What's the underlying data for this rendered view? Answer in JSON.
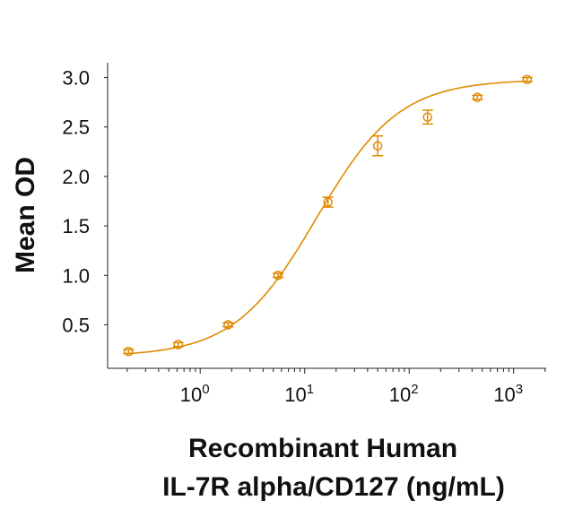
{
  "chart_data": {
    "type": "scatter",
    "title": "",
    "xlabel_lines": [
      "Recombinant Human",
      "IL-7R alpha/CD127 (ng/mL)"
    ],
    "ylabel": "Mean OD",
    "xscale": "log",
    "xlim": [
      0.13,
      2050
    ],
    "ylim": [
      0.06,
      3.15
    ],
    "grid": false,
    "color": "#E08A00",
    "y_ticks": [
      0.5,
      1.0,
      1.5,
      2.0,
      2.5,
      3.0
    ],
    "y_tick_labels": [
      "0.5",
      "1.0",
      "1.5",
      "2.0",
      "2.5",
      "3.0"
    ],
    "x_ticks": [
      1,
      10,
      100,
      1000
    ],
    "x_tick_labels": [
      {
        "base": "10",
        "exp": "0"
      },
      {
        "base": "10",
        "exp": "1"
      },
      {
        "base": "10",
        "exp": "2"
      },
      {
        "base": "10",
        "exp": "3"
      }
    ],
    "series": [
      {
        "x": [
          0.206,
          0.617,
          1.85,
          5.56,
          16.7,
          50,
          150,
          450,
          1350
        ],
        "y": [
          0.23,
          0.3,
          0.5,
          1.0,
          1.74,
          2.31,
          2.6,
          2.8,
          2.98
        ],
        "error": [
          0.02,
          0.02,
          0.02,
          0.02,
          0.05,
          0.1,
          0.07,
          0.02,
          0.02
        ],
        "fit": {
          "model": "4PL",
          "bottom": 0.18,
          "top": 2.98,
          "ec50": 13,
          "hill": 1.1
        }
      }
    ]
  }
}
